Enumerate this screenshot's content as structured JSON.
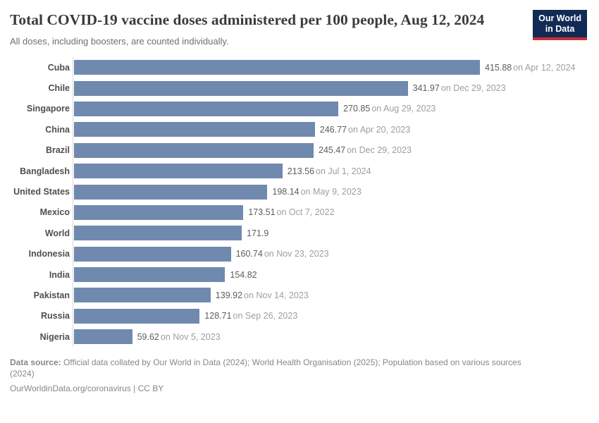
{
  "header": {
    "title": "Total COVID-19 vaccine doses administered per 100 people, Aug 12, 2024",
    "subtitle": "All doses, including boosters, are counted individually.",
    "logo": {
      "line1": "Our World",
      "line2": "in Data",
      "background_color": "#112b55",
      "accent_color": "#c5303e"
    }
  },
  "chart_data": {
    "type": "bar",
    "orientation": "horizontal",
    "title": "Total COVID-19 vaccine doses administered per 100 people, Aug 12, 2024",
    "subtitle": "All doses, including boosters, are counted individually.",
    "grid": false,
    "xlim": [
      0,
      415.88
    ],
    "bar_color": "#7089ae",
    "axis_line_color": "#d9d9d9",
    "categories": [
      "Cuba",
      "Chile",
      "Singapore",
      "China",
      "Brazil",
      "Bangladesh",
      "United States",
      "Mexico",
      "World",
      "Indonesia",
      "India",
      "Pakistan",
      "Russia",
      "Nigeria"
    ],
    "values": [
      415.88,
      341.97,
      270.85,
      246.77,
      245.47,
      213.56,
      198.14,
      173.51,
      171.9,
      160.74,
      154.82,
      139.92,
      128.71,
      59.62
    ],
    "value_labels": [
      "415.88",
      "341.97",
      "270.85",
      "246.77",
      "245.47",
      "213.56",
      "198.14",
      "173.51",
      "171.9",
      "160.74",
      "154.82",
      "139.92",
      "128.71",
      "59.62"
    ],
    "date_labels": [
      "on Apr 12, 2024",
      "on Dec 29, 2023",
      "on Aug 29, 2023",
      "on Apr 20, 2023",
      "on Dec 29, 2023",
      "on Jul 1, 2024",
      "on May 9, 2023",
      "on Oct 7, 2022",
      "",
      "on Nov 23, 2023",
      "",
      "on Nov 14, 2023",
      "on Sep 26, 2023",
      "on Nov 5, 2023"
    ]
  },
  "footer": {
    "source_label": "Data source:",
    "source_line1": " Official data collated by Our World in Data (2024); World Health Organisation (2025); Population based on various sources",
    "source_line2": "(2024)",
    "attribution": "OurWorldinData.org/coronavirus | CC BY"
  }
}
